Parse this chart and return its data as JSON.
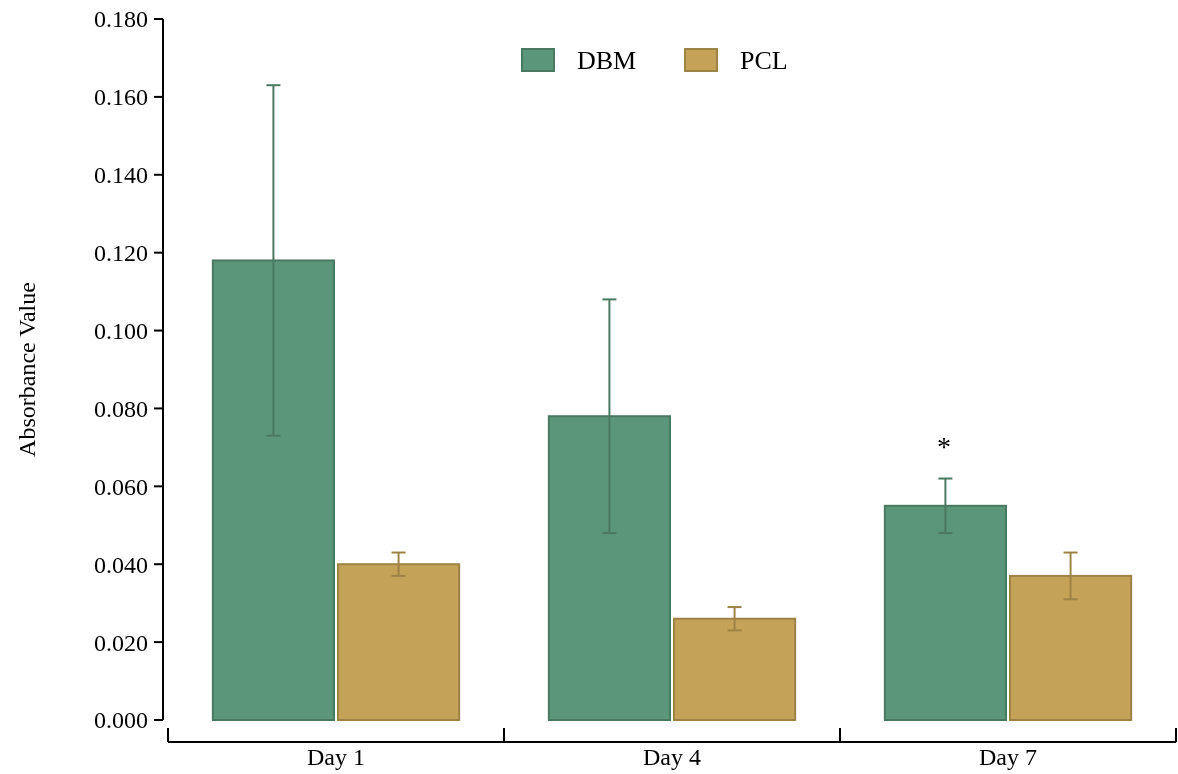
{
  "chart_data": {
    "type": "bar",
    "ylabel": "Absorbance Value",
    "categories": [
      "Day 1",
      "Day 4",
      "Day 7"
    ],
    "series": [
      {
        "name": "DBM",
        "color": "#5c967a",
        "values": [
          0.118,
          0.078,
          0.055
        ],
        "errors": [
          0.045,
          0.03,
          0.007
        ]
      },
      {
        "name": "PCL",
        "color": "#c4a257",
        "values": [
          0.04,
          0.026,
          0.037
        ],
        "errors": [
          0.003,
          0.003,
          0.006
        ]
      }
    ],
    "ylim": [
      0,
      0.18
    ],
    "yticks": [
      {
        "value": 0,
        "label": "0.000"
      },
      {
        "value": 0.02,
        "label": "0.020"
      },
      {
        "value": 0.04,
        "label": "0.040"
      },
      {
        "value": 0.06,
        "label": "0.060"
      },
      {
        "value": 0.08,
        "label": "0.080"
      },
      {
        "value": 0.1,
        "label": "0.100"
      },
      {
        "value": 0.12,
        "label": "0.120"
      },
      {
        "value": 0.14,
        "label": "0.140"
      },
      {
        "value": 0.16,
        "label": "0.160"
      },
      {
        "value": 0.18,
        "label": "0.180"
      }
    ],
    "annotations": [
      "*"
    ],
    "legend": "top",
    "grid": false
  }
}
